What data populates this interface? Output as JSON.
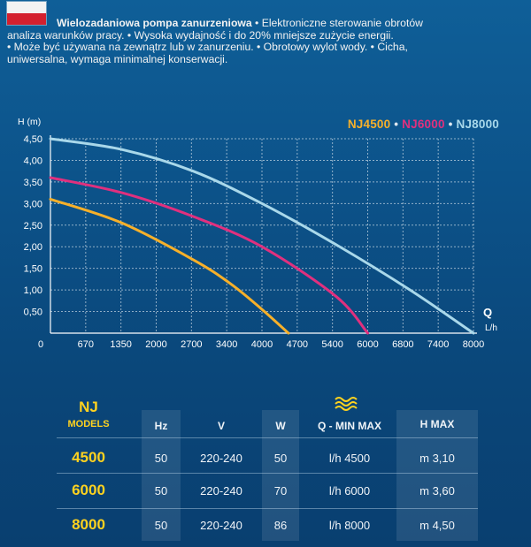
{
  "flag": {
    "name": "poland-flag-icon"
  },
  "description": {
    "bold": "Wielozadaniowa pompa zanurzeniowa",
    "line1": " • Elektroniczne sterowanie obrotów",
    "line2": "analiza warunków pracy. • Wysoka wydajność i do 20% mniejsze zużycie energii.",
    "line3": "• Może być używana na zewnątrz lub w zanurzeniu. • Obrotowy wylot wody. • Cicha,",
    "line4": "uniwersalna, wymaga minimalnej konserwacji."
  },
  "chart_data": {
    "type": "line",
    "ylabel": "H (m)",
    "xlabel": "Q",
    "xunit": "L/h",
    "y_ticks": [
      "4,50",
      "4,00",
      "3,50",
      "3,00",
      "2,50",
      "2,00",
      "1,50",
      "1,00",
      "0,50"
    ],
    "x_ticks": [
      "0",
      "670",
      "1350",
      "2000",
      "2700",
      "3400",
      "4000",
      "4700",
      "5400",
      "6000",
      "6800",
      "7400",
      "8000"
    ],
    "xlim": [
      0,
      8000
    ],
    "ylim": [
      0,
      4.5
    ],
    "grid": true,
    "legend_position": "top-right",
    "series": [
      {
        "name": "NJ4500",
        "color": "#f7b02a",
        "points": [
          [
            0,
            3.1
          ],
          [
            1350,
            2.55
          ],
          [
            2700,
            1.7
          ],
          [
            3400,
            1.15
          ],
          [
            4000,
            0.55
          ],
          [
            4500,
            0.0
          ]
        ]
      },
      {
        "name": "NJ6000",
        "color": "#e0307e",
        "points": [
          [
            0,
            3.6
          ],
          [
            1350,
            3.25
          ],
          [
            2700,
            2.7
          ],
          [
            4000,
            2.0
          ],
          [
            5400,
            0.85
          ],
          [
            6000,
            0.0
          ]
        ]
      },
      {
        "name": "NJ8000",
        "color": "#a9d8ea",
        "points": [
          [
            0,
            4.5
          ],
          [
            1350,
            4.25
          ],
          [
            2700,
            3.75
          ],
          [
            4000,
            3.0
          ],
          [
            5400,
            2.05
          ],
          [
            6800,
            1.0
          ],
          [
            8000,
            0.0
          ]
        ]
      }
    ]
  },
  "legend": {
    "sep": " • "
  },
  "table": {
    "nj": "NJ",
    "models_label": "MODELS",
    "headers": {
      "hz": "Hz",
      "v": "V",
      "w": "W",
      "q": "Q - MIN MAX",
      "h": "H MAX"
    },
    "rows": [
      {
        "model": "4500",
        "hz": "50",
        "v": "220-240",
        "w": "50",
        "q": "l/h 4500",
        "h": "m 3,10"
      },
      {
        "model": "6000",
        "hz": "50",
        "v": "220-240",
        "w": "70",
        "q": "l/h 6000",
        "h": "m 3,60"
      },
      {
        "model": "8000",
        "hz": "50",
        "v": "220-240",
        "w": "86",
        "q": "l/h 8000",
        "h": "m 4,50"
      }
    ]
  }
}
